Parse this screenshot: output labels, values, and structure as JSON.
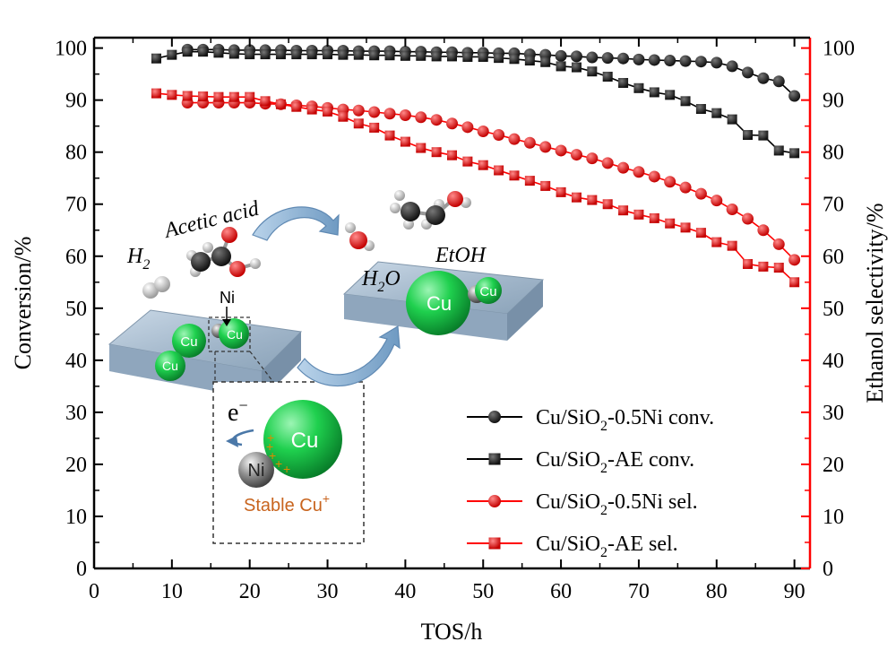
{
  "chart_data": {
    "type": "scatter",
    "title": "",
    "xlabel": "TOS/h",
    "ylabel_left": "Conversion/%",
    "ylabel_right": "Ethanol selectivity/%",
    "xlim": [
      0,
      92
    ],
    "ylim": [
      0,
      102
    ],
    "ylim_right": [
      0,
      102
    ],
    "x_ticks": [
      "0",
      "10",
      "20",
      "30",
      "40",
      "50",
      "60",
      "70",
      "80",
      "90"
    ],
    "y_ticks": [
      "0",
      "10",
      "20",
      "30",
      "40",
      "50",
      "60",
      "70",
      "80",
      "90",
      "100"
    ],
    "y_ticks_right": [
      "0",
      "10",
      "20",
      "30",
      "40",
      "50",
      "60",
      "70",
      "80",
      "90",
      "100"
    ],
    "grid": false,
    "legend_position": "bottom-right",
    "series": [
      {
        "name": "Cu/SiO2-0.5Ni conv.",
        "legend_main": "Cu/SiO",
        "legend_sub": "2",
        "legend_tail": "-0.5Ni conv.",
        "color": "#000000",
        "marker": "circle",
        "axis": "left",
        "x": [
          12,
          14,
          16,
          18,
          20,
          22,
          24,
          26,
          28,
          30,
          32,
          34,
          36,
          38,
          40,
          42,
          44,
          46,
          48,
          50,
          52,
          54,
          56,
          58,
          60,
          62,
          64,
          66,
          68,
          70,
          72,
          74,
          76,
          78,
          80,
          82,
          84,
          86,
          88,
          90
        ],
        "y": [
          99.7,
          99.7,
          99.7,
          99.6,
          99.6,
          99.6,
          99.6,
          99.5,
          99.5,
          99.5,
          99.5,
          99.4,
          99.4,
          99.4,
          99.3,
          99.3,
          99.2,
          99.2,
          99.1,
          99.1,
          99.0,
          99.0,
          98.8,
          98.7,
          98.5,
          98.4,
          98.2,
          98.1,
          98.0,
          97.8,
          97.7,
          97.6,
          97.5,
          97.4,
          97.2,
          96.5,
          95.3,
          94.2,
          93.6,
          90.8
        ]
      },
      {
        "name": "Cu/SiO2-AE conv.",
        "legend_main": "Cu/SiO",
        "legend_sub": "2",
        "legend_tail": "-AE conv.",
        "color": "#000000",
        "marker": "square",
        "axis": "left",
        "x": [
          8,
          10,
          12,
          14,
          16,
          18,
          20,
          22,
          24,
          26,
          28,
          30,
          32,
          34,
          36,
          38,
          40,
          42,
          44,
          46,
          48,
          50,
          52,
          54,
          56,
          58,
          60,
          62,
          64,
          66,
          68,
          70,
          72,
          74,
          76,
          78,
          80,
          82,
          84,
          86,
          88,
          90
        ],
        "y": [
          98.0,
          98.7,
          99.3,
          99.3,
          99.1,
          98.9,
          98.8,
          98.8,
          98.8,
          98.8,
          98.8,
          98.8,
          98.7,
          98.7,
          98.6,
          98.6,
          98.5,
          98.5,
          98.4,
          98.4,
          98.3,
          98.3,
          98.1,
          97.9,
          97.6,
          97.3,
          96.5,
          96.3,
          95.5,
          94.5,
          93.3,
          92.3,
          91.5,
          91.0,
          89.8,
          88.3,
          87.5,
          86.3,
          83.3,
          83.2,
          80.3,
          79.8
        ]
      },
      {
        "name": "Cu/SiO2-0.5Ni sel.",
        "legend_main": "Cu/SiO",
        "legend_sub": "2",
        "legend_tail": "-0.5Ni sel.",
        "color": "#ff0000",
        "marker": "circle",
        "axis": "right",
        "x": [
          12,
          14,
          16,
          18,
          20,
          22,
          24,
          26,
          28,
          30,
          32,
          34,
          36,
          38,
          40,
          42,
          44,
          46,
          48,
          50,
          52,
          54,
          56,
          58,
          60,
          62,
          64,
          66,
          68,
          70,
          72,
          74,
          76,
          78,
          80,
          82,
          84,
          86,
          88,
          90
        ],
        "y": [
          89.5,
          89.5,
          89.5,
          89.5,
          89.5,
          89.3,
          89.2,
          89.0,
          88.8,
          88.5,
          88.2,
          88.0,
          87.7,
          87.4,
          87.1,
          86.7,
          86.2,
          85.5,
          84.8,
          84.0,
          83.3,
          82.5,
          81.8,
          81.0,
          80.3,
          79.5,
          78.8,
          77.9,
          77.0,
          76.2,
          75.3,
          74.3,
          73.2,
          72.0,
          70.7,
          69.0,
          67.2,
          65.0,
          62.3,
          59.3
        ]
      },
      {
        "name": "Cu/SiO2-AE sel.",
        "legend_main": "Cu/SiO",
        "legend_sub": "2",
        "legend_tail": "-AE sel.",
        "color": "#ff0000",
        "marker": "square",
        "axis": "right",
        "x": [
          8,
          10,
          12,
          14,
          16,
          18,
          20,
          22,
          24,
          26,
          28,
          30,
          32,
          34,
          36,
          38,
          40,
          42,
          44,
          46,
          48,
          50,
          52,
          54,
          56,
          58,
          60,
          62,
          64,
          66,
          68,
          70,
          72,
          74,
          76,
          78,
          80,
          82,
          84,
          86,
          88,
          90
        ],
        "y": [
          91.3,
          91.0,
          90.8,
          90.7,
          90.6,
          90.6,
          90.6,
          89.8,
          89.2,
          88.7,
          88.2,
          87.8,
          86.8,
          85.5,
          84.7,
          83.2,
          82.0,
          80.8,
          80.0,
          79.4,
          78.2,
          77.5,
          76.5,
          75.5,
          74.5,
          73.5,
          72.3,
          71.3,
          70.8,
          70.0,
          68.8,
          68.0,
          67.3,
          66.3,
          65.5,
          64.5,
          62.7,
          62.0,
          58.5,
          58.0,
          57.8,
          55.0
        ]
      }
    ]
  },
  "inset": {
    "h2": "H",
    "h2_sub": "2",
    "acetic_acid": "Acetic acid",
    "h2o_main": "H",
    "h2o_sub": "2",
    "h2o_tail": "O",
    "etoh": "EtOH",
    "ni_label": "Ni",
    "cu_label": "Cu",
    "electron": "e",
    "electron_sup": "−",
    "stable_main": "Stable Cu",
    "stable_sup": "+",
    "plus_mark": "+"
  }
}
